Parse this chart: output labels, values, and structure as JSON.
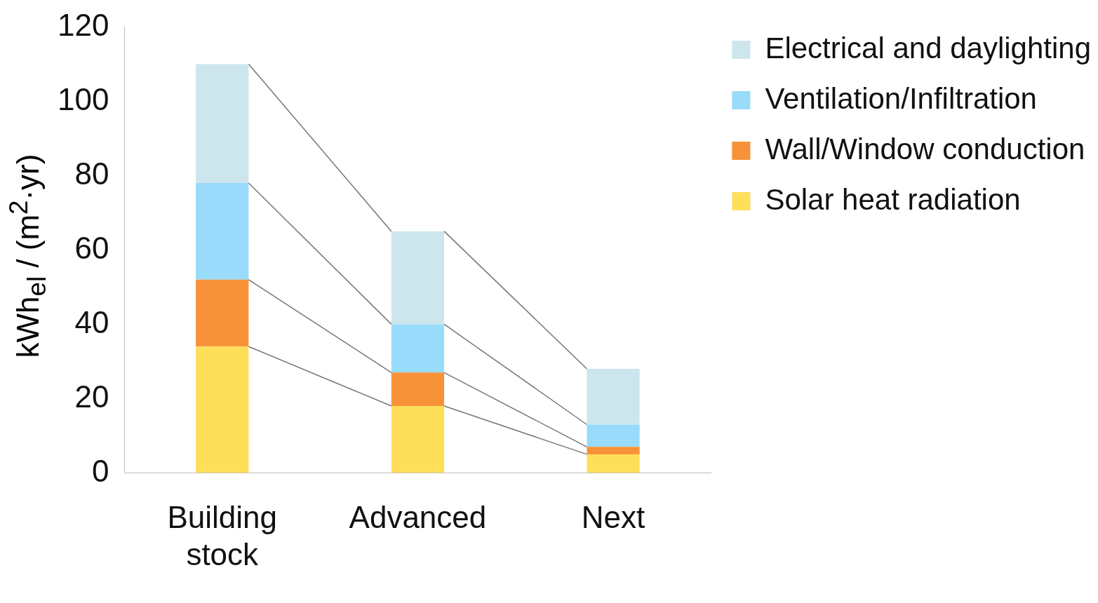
{
  "chart_data": {
    "type": "bar",
    "stacked": true,
    "ylabel": "kWh$_{el}$ / (m$^{2}$·yr)",
    "categories": [
      "Building stock",
      "Advanced",
      "Next"
    ],
    "series": [
      {
        "name": "Solar heat radiation",
        "color": "#fedf5a",
        "values": [
          34,
          18,
          5
        ]
      },
      {
        "name": "Wall/Window conduction",
        "color": "#f79239",
        "values": [
          18,
          9,
          2
        ]
      },
      {
        "name": "Ventilation/Infiltration",
        "color": "#99dbfa",
        "values": [
          26,
          13,
          6
        ]
      },
      {
        "name": "Electrical and daylighting",
        "color": "#cde6ee",
        "values": [
          32,
          25,
          15
        ]
      }
    ],
    "ylim": [
      0,
      120
    ],
    "yticks": [
      0,
      20,
      40,
      60,
      80,
      100,
      120
    ],
    "grid": false,
    "legend": "right"
  }
}
